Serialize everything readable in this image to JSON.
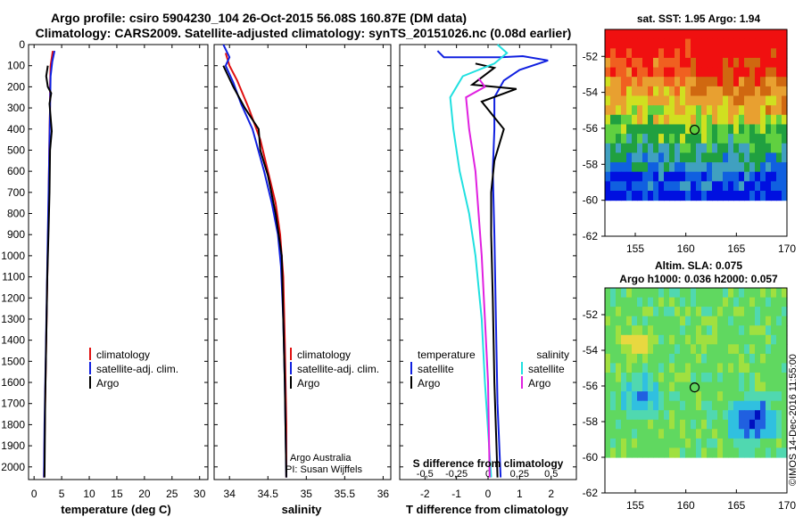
{
  "header": {
    "title_line1": "Argo profile: csiro 5904230_104 26-Oct-2015 56.08S 160.87E (DM data)",
    "title_line2": "Climatology: CARS2009. Satellite-adjusted climatology: synTS_20151026.nc (0.08d earlier)"
  },
  "chart_data": [
    {
      "type": "line",
      "id": "temperature",
      "xlabel": "temperature (deg C)",
      "ylabel": "",
      "xlim": [
        -1,
        31.5
      ],
      "ylim": [
        2060,
        0
      ],
      "x_ticks": [
        0,
        5,
        10,
        15,
        20,
        25,
        30
      ],
      "y_ticks": [
        0,
        100,
        200,
        300,
        400,
        500,
        600,
        700,
        800,
        900,
        1000,
        1100,
        1200,
        1300,
        1400,
        1500,
        1600,
        1700,
        1800,
        1900,
        2000
      ],
      "legend": {
        "entries": [
          "climatology",
          "satellite-adj. clim.",
          "Argo"
        ],
        "colors": [
          "#e01010",
          "#1020e0",
          "#000000"
        ]
      },
      "series": [
        {
          "name": "climatology",
          "color": "#e01010",
          "points": [
            [
              3.4,
              30
            ],
            [
              3.0,
              100
            ],
            [
              2.9,
              200
            ],
            [
              2.9,
              300
            ],
            [
              2.8,
              400
            ],
            [
              2.7,
              600
            ],
            [
              2.6,
              800
            ],
            [
              2.4,
              1100
            ],
            [
              2.2,
              1400
            ],
            [
              2.0,
              1700
            ],
            [
              1.8,
              2050
            ]
          ]
        },
        {
          "name": "satellite-adj. clim.",
          "color": "#1020e0",
          "points": [
            [
              3.7,
              30
            ],
            [
              3.3,
              80
            ],
            [
              3.0,
              150
            ],
            [
              2.9,
              300
            ],
            [
              2.8,
              450
            ],
            [
              2.7,
              600
            ],
            [
              2.5,
              900
            ],
            [
              2.3,
              1200
            ],
            [
              2.1,
              1500
            ],
            [
              1.9,
              1800
            ],
            [
              1.8,
              2050
            ]
          ]
        },
        {
          "name": "Argo",
          "color": "#000000",
          "points": [
            [
              2.5,
              100
            ],
            [
              2.2,
              150
            ],
            [
              2.5,
              200
            ],
            [
              3.1,
              230
            ],
            [
              2.8,
              280
            ],
            [
              3.2,
              410
            ],
            [
              2.9,
              500
            ],
            [
              2.8,
              700
            ],
            [
              2.6,
              900
            ],
            [
              2.4,
              1100
            ],
            [
              2.2,
              1400
            ],
            [
              2.0,
              1700
            ],
            [
              1.9,
              2050
            ]
          ]
        }
      ]
    },
    {
      "type": "line",
      "id": "salinity",
      "xlabel": "salinity",
      "ylabel": "",
      "xlim": [
        33.8,
        36.1
      ],
      "ylim": [
        2060,
        0
      ],
      "x_ticks": [
        34,
        34.5,
        35,
        35.5,
        36
      ],
      "legend": {
        "entries": [
          "climatology",
          "satellite-adj. clim.",
          "Argo"
        ],
        "colors": [
          "#e01010",
          "#1020e0",
          "#000000"
        ]
      },
      "annotation": [
        "Argo Australia",
        "PI: Susan Wijffels"
      ],
      "series": [
        {
          "name": "climatology",
          "color": "#e01010",
          "points": [
            [
              33.95,
              40
            ],
            [
              34.0,
              100
            ],
            [
              34.1,
              170
            ],
            [
              34.25,
              300
            ],
            [
              34.4,
              450
            ],
            [
              34.5,
              600
            ],
            [
              34.6,
              750
            ],
            [
              34.66,
              900
            ],
            [
              34.7,
              1100
            ],
            [
              34.72,
              1400
            ],
            [
              34.74,
              1800
            ],
            [
              34.74,
              2050
            ]
          ]
        },
        {
          "name": "satellite-adj. clim.",
          "color": "#1020e0",
          "points": [
            [
              33.92,
              0
            ],
            [
              34.0,
              60
            ],
            [
              33.95,
              100
            ],
            [
              34.05,
              180
            ],
            [
              34.15,
              280
            ],
            [
              34.3,
              400
            ],
            [
              34.45,
              600
            ],
            [
              34.55,
              750
            ],
            [
              34.63,
              900
            ],
            [
              34.67,
              1050
            ],
            [
              34.7,
              1300
            ],
            [
              34.72,
              1600
            ],
            [
              34.74,
              2050
            ]
          ]
        },
        {
          "name": "Argo",
          "color": "#000000",
          "points": [
            [
              33.92,
              100
            ],
            [
              34.05,
              200
            ],
            [
              34.2,
              300
            ],
            [
              34.38,
              400
            ],
            [
              34.4,
              500
            ],
            [
              34.5,
              620
            ],
            [
              34.6,
              800
            ],
            [
              34.68,
              1000
            ],
            [
              34.7,
              1300
            ],
            [
              34.72,
              1600
            ],
            [
              34.74,
              2050
            ]
          ]
        }
      ]
    },
    {
      "type": "line",
      "id": "difference",
      "xlabel": "T difference from climatology",
      "xlabel_secondary": "S difference from climatology",
      "ylabel": "",
      "xlim": [
        -2.8,
        2.8
      ],
      "ylim": [
        2060,
        0
      ],
      "x_ticks": [
        -2,
        -1,
        0,
        1,
        2
      ],
      "x_ticks_secondary": [
        -0.5,
        -0.25,
        0,
        0.25,
        0.5
      ],
      "legend_left": {
        "title": "temperature",
        "entries": [
          "satellite",
          "Argo"
        ],
        "colors": [
          "#1020e0",
          "#000000"
        ]
      },
      "legend_right": {
        "title": "salinity",
        "entries": [
          "satellite",
          "Argo"
        ],
        "colors": [
          "#20e0e0",
          "#e020e0"
        ]
      },
      "series": [
        {
          "name": "satellite",
          "group": "temperature",
          "color": "#1020e0",
          "points": [
            [
              -1.6,
              30
            ],
            [
              -1.4,
              60
            ],
            [
              0.4,
              60
            ],
            [
              1.1,
              55
            ],
            [
              1.9,
              75
            ],
            [
              1.0,
              120
            ],
            [
              0.5,
              170
            ],
            [
              0.2,
              250
            ],
            [
              0.2,
              400
            ],
            [
              0.15,
              600
            ],
            [
              0.2,
              900
            ],
            [
              0.25,
              1300
            ],
            [
              0.3,
              1700
            ],
            [
              0.4,
              2050
            ]
          ]
        },
        {
          "name": "Argo",
          "group": "temperature",
          "color": "#000000",
          "points": [
            [
              -0.4,
              90
            ],
            [
              0.2,
              110
            ],
            [
              -0.5,
              190
            ],
            [
              0.9,
              210
            ],
            [
              -0.2,
              270
            ],
            [
              0.5,
              400
            ],
            [
              0.2,
              550
            ],
            [
              0.1,
              700
            ],
            [
              0.1,
              900
            ],
            [
              0.15,
              1200
            ],
            [
              0.2,
              1600
            ],
            [
              0.3,
              2050
            ]
          ]
        },
        {
          "name": "satellite",
          "group": "salinity",
          "color": "#20e0e0",
          "points": [
            [
              0.3,
              0
            ],
            [
              0.6,
              40
            ],
            [
              0.2,
              90
            ],
            [
              -0.8,
              150
            ],
            [
              -1.2,
              250
            ],
            [
              -1.1,
              400
            ],
            [
              -0.9,
              600
            ],
            [
              -0.6,
              800
            ],
            [
              -0.4,
              1000
            ],
            [
              -0.2,
              1300
            ],
            [
              -0.1,
              1600
            ],
            [
              0.1,
              2050
            ]
          ]
        },
        {
          "name": "Argo",
          "group": "salinity",
          "color": "#e020e0",
          "points": [
            [
              -0.3,
              160
            ],
            [
              -0.1,
              200
            ],
            [
              -0.7,
              250
            ],
            [
              -0.6,
              400
            ],
            [
              -0.4,
              600
            ],
            [
              -0.3,
              800
            ],
            [
              -0.2,
              1000
            ],
            [
              -0.1,
              1300
            ],
            [
              0.0,
              1600
            ],
            [
              0.05,
              2050
            ]
          ]
        }
      ]
    },
    {
      "type": "heatmap",
      "id": "sst_map",
      "title": "sat. SST: 1.95 Argo: 1.94",
      "xlim": [
        152,
        170
      ],
      "ylim": [
        -62,
        -50.5
      ],
      "x_ticks": [
        155,
        160,
        165,
        170
      ],
      "y_ticks": [
        -52,
        -54,
        -56,
        -58,
        -60,
        -62
      ],
      "argo_position": [
        160.87,
        -56.08
      ],
      "data_extent_lat": [
        -60,
        -50.5
      ]
    },
    {
      "type": "heatmap",
      "id": "sla_map",
      "title_line1": "Altim. SLA: 0.075",
      "title_line2": "Argo h1000: 0.036 h2000: 0.057",
      "xlim": [
        152,
        170
      ],
      "ylim": [
        -62,
        -50.5
      ],
      "x_ticks": [
        155,
        160,
        165,
        170
      ],
      "y_ticks": [
        -52,
        -54,
        -56,
        -58,
        -60,
        -62
      ],
      "argo_position": [
        160.87,
        -56.08
      ],
      "data_extent_lat": [
        -60,
        -50.5
      ]
    }
  ],
  "footer": {
    "credit": "©IMOS 14-Dec-2016 11:55:00"
  }
}
